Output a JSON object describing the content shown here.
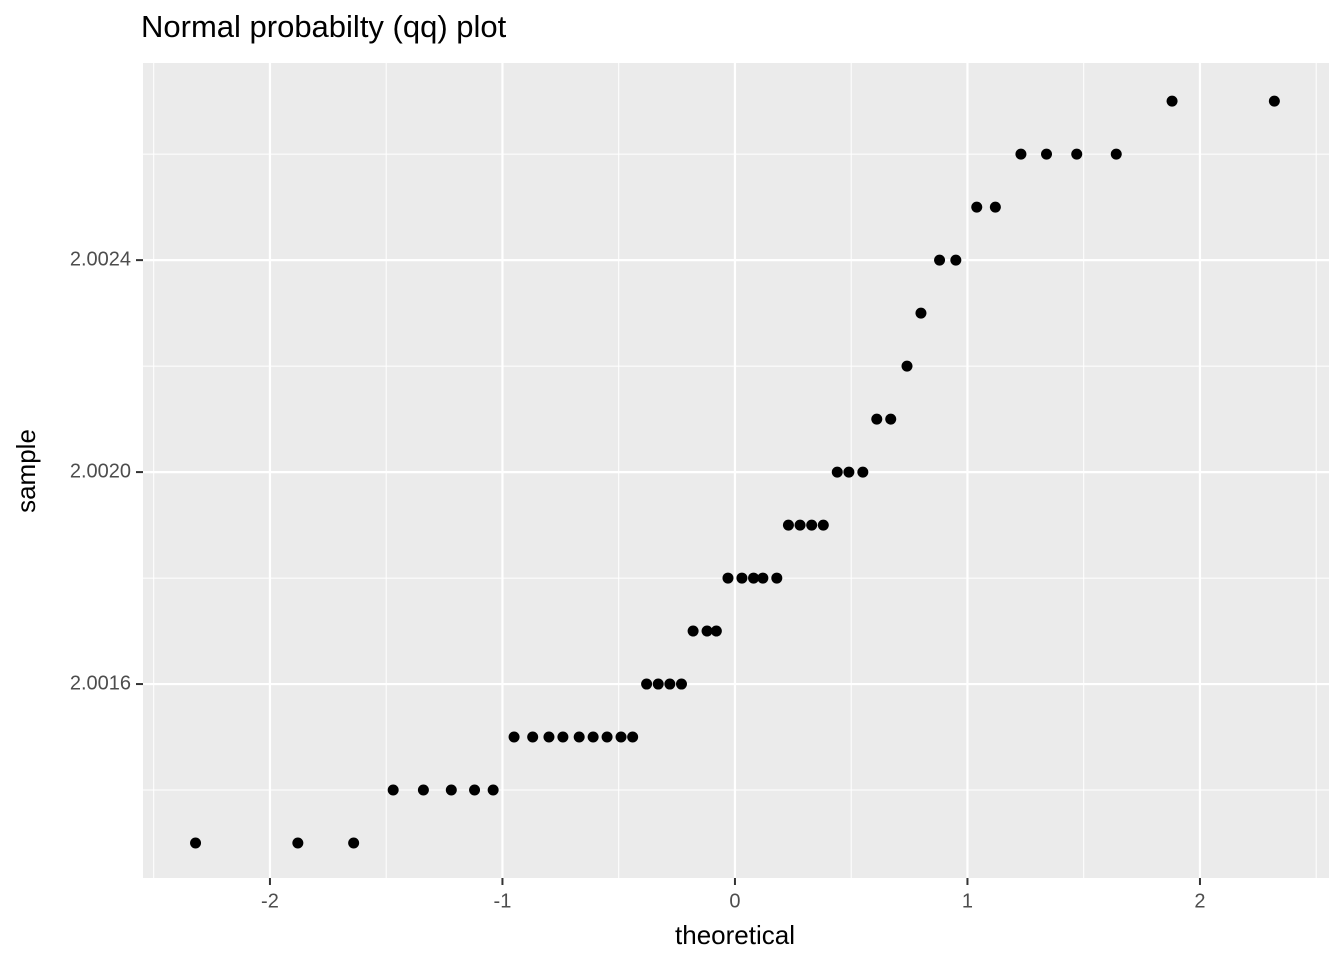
{
  "chart_data": {
    "type": "scatter",
    "title": "Normal probabilty (qq) plot",
    "x_label": "theoretical",
    "y_label": "sample",
    "x": [
      -2.32,
      -1.88,
      -1.64,
      -1.47,
      -1.34,
      -1.22,
      -1.12,
      -1.04,
      -0.95,
      -0.87,
      -0.8,
      -0.74,
      -0.67,
      -0.61,
      -0.55,
      -0.49,
      -0.44,
      -0.38,
      -0.33,
      -0.28,
      -0.23,
      -0.18,
      -0.12,
      -0.08,
      -0.03,
      0.03,
      0.08,
      0.12,
      0.18,
      0.23,
      0.28,
      0.33,
      0.38,
      0.44,
      0.49,
      0.55,
      0.61,
      0.67,
      0.74,
      0.8,
      0.88,
      0.95,
      1.04,
      1.12,
      1.23,
      1.34,
      1.47,
      1.64,
      1.88,
      2.32
    ],
    "values": [
      2.0013,
      2.0013,
      2.0013,
      2.0014,
      2.0014,
      2.0014,
      2.0014,
      2.0014,
      2.0015,
      2.0015,
      2.0015,
      2.0015,
      2.0015,
      2.0015,
      2.0015,
      2.0015,
      2.0015,
      2.0016,
      2.0016,
      2.0016,
      2.0016,
      2.0017,
      2.0017,
      2.0017,
      2.0018,
      2.0018,
      2.0018,
      2.0018,
      2.0018,
      2.0019,
      2.0019,
      2.0019,
      2.0019,
      2.002,
      2.002,
      2.002,
      2.0021,
      2.0021,
      2.0022,
      2.0023,
      2.0024,
      2.0024,
      2.0025,
      2.0025,
      2.0026,
      2.0026,
      2.0026,
      2.0026,
      2.0027,
      2.0027
    ],
    "color": "#000000",
    "xlim": [
      -2.546,
      2.555
    ],
    "ylim": [
      2.001234,
      2.002772
    ],
    "xticks": [
      -2,
      -1,
      0,
      1,
      2
    ],
    "yticks": [
      {
        "value": 2.0016,
        "label": "2.0016"
      },
      {
        "value": 2.002,
        "label": "2.0020"
      },
      {
        "value": 2.0024,
        "label": "2.0024"
      }
    ],
    "x_minor_ticks": [
      -2.5,
      -1.5,
      -0.5,
      0.5,
      1.5,
      2.5
    ],
    "y_minor_ticks": [
      2.0014,
      2.0018,
      2.0022,
      2.0026
    ],
    "grid": true
  }
}
